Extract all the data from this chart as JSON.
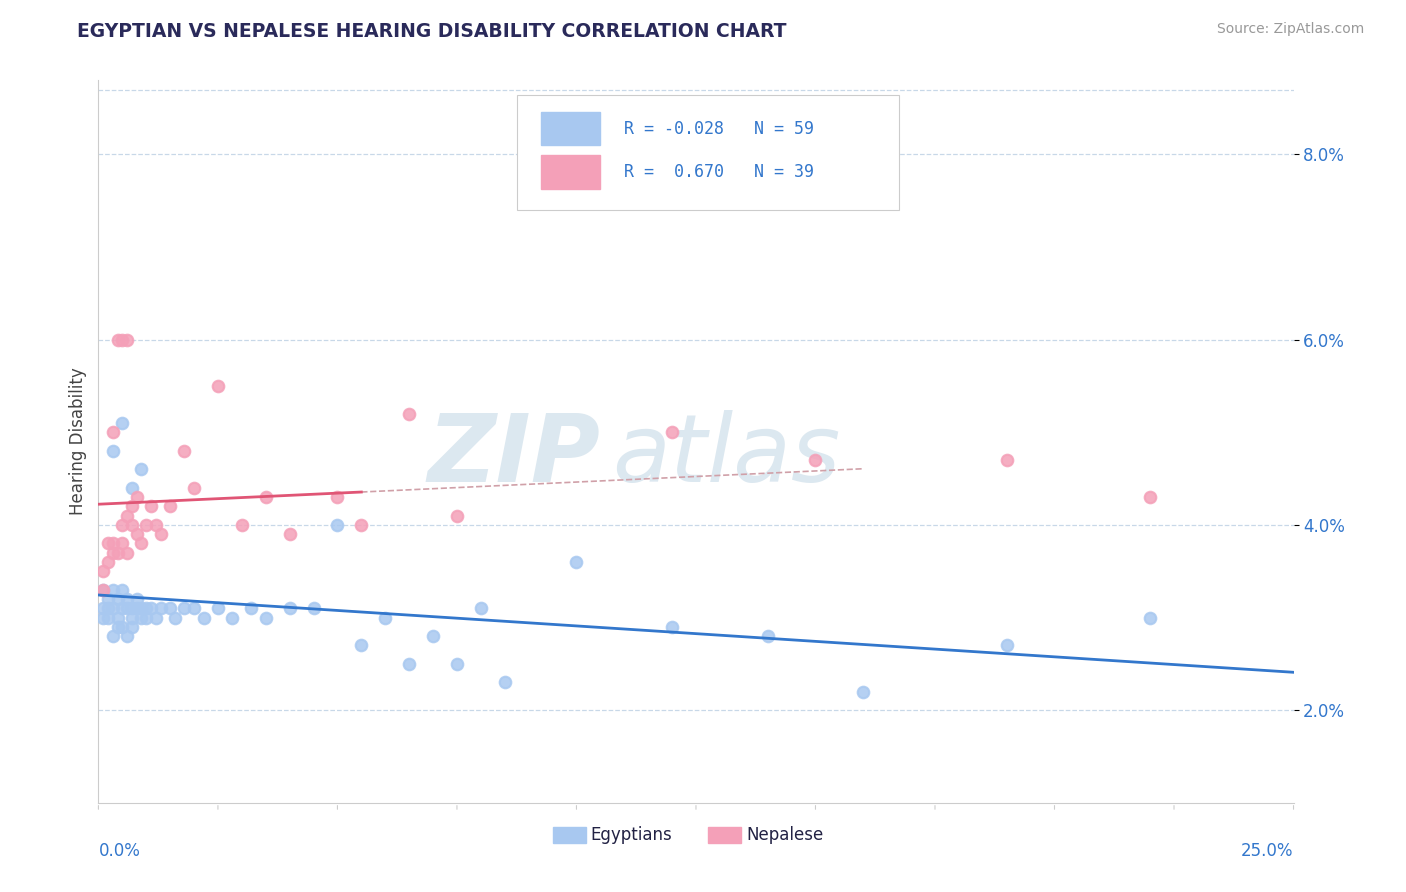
{
  "title": "EGYPTIAN VS NEPALESE HEARING DISABILITY CORRELATION CHART",
  "source": "Source: ZipAtlas.com",
  "ylabel": "Hearing Disability",
  "xmin": 0.0,
  "xmax": 0.25,
  "ymin": 0.01,
  "ymax": 0.088,
  "egyptian_R": -0.028,
  "egyptian_N": 59,
  "nepalese_R": 0.67,
  "nepalese_N": 39,
  "egyptian_color": "#a8c8f0",
  "nepalese_color": "#f4a0b8",
  "egyptian_line_color": "#3377cc",
  "nepalese_line_color": "#e05575",
  "ref_line_color": "#d0a0a8",
  "background_color": "#ffffff",
  "grid_color": "#c8d8e8",
  "watermark_color": "#dce8f0",
  "ytick_vals": [
    0.02,
    0.04,
    0.06,
    0.08
  ],
  "ytick_labels": [
    "2.0%",
    "4.0%",
    "6.0%",
    "8.0%"
  ],
  "eg_x": [
    0.001,
    0.001,
    0.001,
    0.002,
    0.002,
    0.002,
    0.003,
    0.003,
    0.003,
    0.004,
    0.004,
    0.004,
    0.005,
    0.005,
    0.005,
    0.006,
    0.006,
    0.006,
    0.007,
    0.007,
    0.007,
    0.008,
    0.008,
    0.009,
    0.009,
    0.01,
    0.01,
    0.011,
    0.012,
    0.013,
    0.015,
    0.016,
    0.018,
    0.02,
    0.022,
    0.025,
    0.028,
    0.032,
    0.035,
    0.04,
    0.045,
    0.05,
    0.06,
    0.07,
    0.08,
    0.1,
    0.12,
    0.14,
    0.16,
    0.19,
    0.003,
    0.005,
    0.007,
    0.009,
    0.055,
    0.065,
    0.075,
    0.085,
    0.22
  ],
  "eg_y": [
    0.031,
    0.033,
    0.03,
    0.032,
    0.031,
    0.03,
    0.033,
    0.031,
    0.028,
    0.032,
    0.03,
    0.029,
    0.033,
    0.031,
    0.029,
    0.032,
    0.031,
    0.028,
    0.031,
    0.03,
    0.029,
    0.032,
    0.031,
    0.031,
    0.03,
    0.031,
    0.03,
    0.031,
    0.03,
    0.031,
    0.031,
    0.03,
    0.031,
    0.031,
    0.03,
    0.031,
    0.03,
    0.031,
    0.03,
    0.031,
    0.031,
    0.04,
    0.03,
    0.028,
    0.031,
    0.036,
    0.029,
    0.028,
    0.022,
    0.027,
    0.048,
    0.051,
    0.044,
    0.046,
    0.027,
    0.025,
    0.025,
    0.023,
    0.03
  ],
  "np_x": [
    0.001,
    0.001,
    0.002,
    0.002,
    0.003,
    0.003,
    0.003,
    0.004,
    0.004,
    0.005,
    0.005,
    0.005,
    0.006,
    0.006,
    0.006,
    0.007,
    0.007,
    0.008,
    0.008,
    0.009,
    0.01,
    0.011,
    0.012,
    0.013,
    0.015,
    0.018,
    0.02,
    0.025,
    0.03,
    0.035,
    0.04,
    0.05,
    0.055,
    0.065,
    0.075,
    0.12,
    0.15,
    0.19,
    0.22
  ],
  "np_y": [
    0.035,
    0.033,
    0.036,
    0.038,
    0.037,
    0.038,
    0.05,
    0.037,
    0.06,
    0.038,
    0.04,
    0.06,
    0.037,
    0.041,
    0.06,
    0.04,
    0.042,
    0.039,
    0.043,
    0.038,
    0.04,
    0.042,
    0.04,
    0.039,
    0.042,
    0.048,
    0.044,
    0.055,
    0.04,
    0.043,
    0.039,
    0.043,
    0.04,
    0.052,
    0.041,
    0.05,
    0.047,
    0.047,
    0.043
  ]
}
